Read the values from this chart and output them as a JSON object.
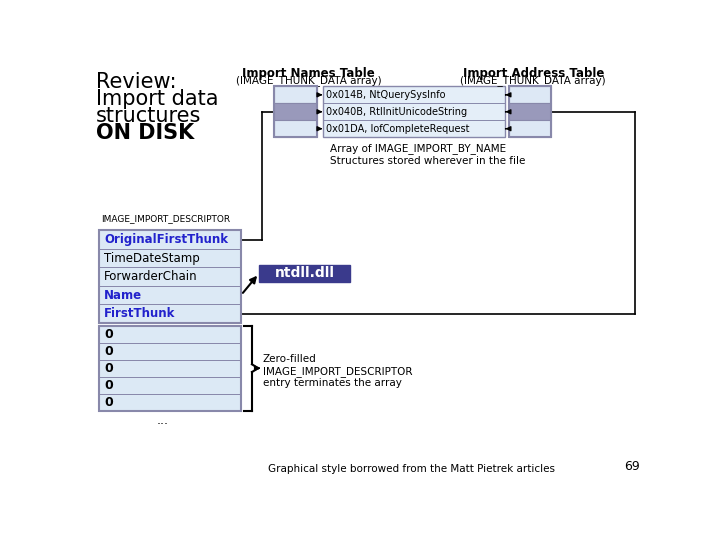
{
  "int_table_title": "Import Names Table",
  "int_table_subtitle": "(IMAGE_THUNK_DATA array)",
  "iat_table_title": "Import Address Table",
  "iat_table_subtitle": "(IMAGE_THUNK_DATA array)",
  "int_entries": [
    "0x014B, NtQuerySysInfo",
    "0x040B, RtlInitUnicodeString",
    "0x01DA, IofCompleteRequest"
  ],
  "int_note": "Array of IMAGE_IMPORT_BY_NAME\nStructures stored wherever in the file",
  "descriptor_label": "IMAGE_IMPORT_DESCRIPTOR",
  "descriptor_fields": [
    "OriginalFirstThunk",
    "TimeDateStamp",
    "ForwarderChain",
    "Name",
    "FirstThunk"
  ],
  "descriptor_highlight": [
    "OriginalFirstThunk",
    "Name",
    "FirstThunk"
  ],
  "zero_fields": [
    "0",
    "0",
    "0",
    "0",
    "0"
  ],
  "ntdll_label": "ntdll.dll",
  "zero_note": "Zero-filled\nIMAGE_IMPORT_DESCRIPTOR\nentry terminates the array",
  "footer_note": "Graphical style borrowed from the Matt Pietrek articles",
  "page_num": "69",
  "bg_color": "#ffffff",
  "int_box_border": "#8888aa",
  "cell_light": "#dde8f5",
  "cell_mid": "#9999bb",
  "label_box_fill": "#e4eef8",
  "desc_box_fill": "#dce9f5",
  "desc_box_border": "#8888aa",
  "desc_text_highlight": "#2222cc",
  "desc_text_normal": "#000000",
  "ntdll_bg": "#3a3a8c",
  "ntdll_fg": "#ffffff",
  "line_color": "#000000"
}
